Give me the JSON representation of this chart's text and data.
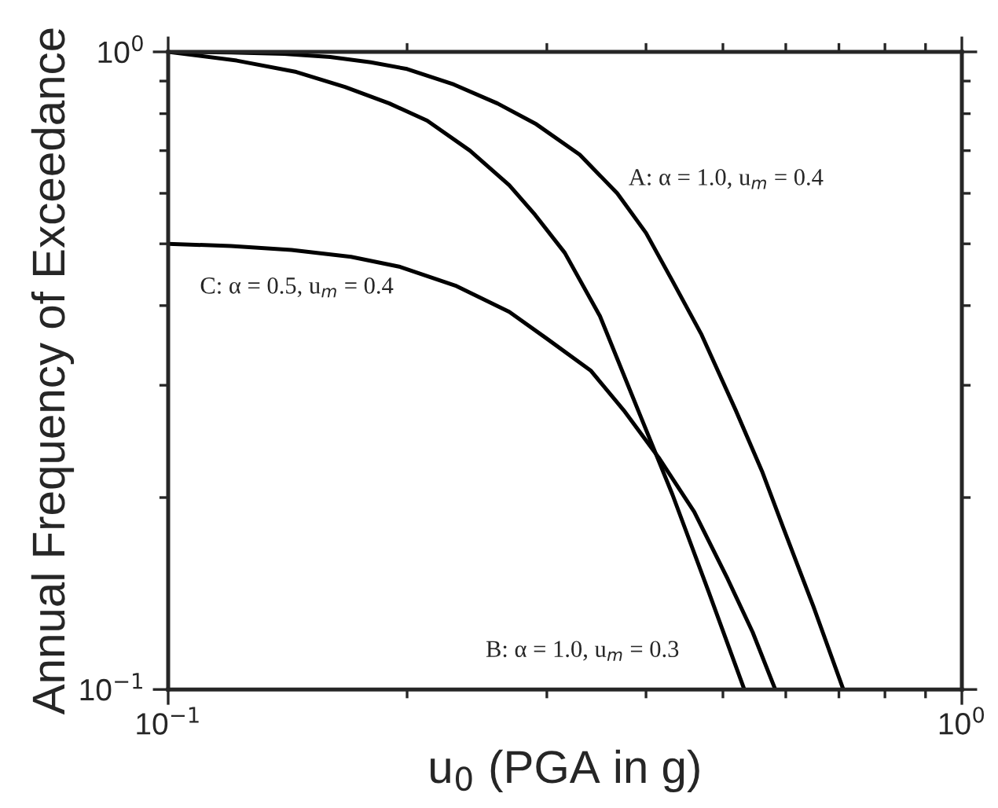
{
  "chart_data": {
    "type": "line",
    "xlabel": "u$_{0}$ (PGA in g)",
    "ylabel": "Annual Frequency of Exceedance",
    "log": "xy",
    "legend": false,
    "marker": "none",
    "line_style": "solid",
    "xlim": [
      0.1,
      1
    ],
    "ylim": [
      0.1,
      1
    ],
    "xticks": [
      {
        "value": 0.1,
        "label": "10$^{−1}$"
      },
      {
        "value": 1,
        "label": "10$^{0}$"
      }
    ],
    "yticks": [
      {
        "value": 0.1,
        "label": "10$^{−1}$"
      },
      {
        "value": 1,
        "label": "10$^{0}$"
      }
    ],
    "series": [
      {
        "color": "#000000",
        "x": [
          0.1,
          0.12,
          0.14,
          0.16,
          0.18,
          0.2,
          0.229,
          0.26,
          0.291,
          0.33,
          0.368,
          0.4,
          0.432,
          0.47,
          0.519,
          0.56,
          0.595,
          0.65,
          0.709
        ],
        "values": [
          1.0,
          0.998,
          0.993,
          0.982,
          0.963,
          0.94,
          0.889,
          0.83,
          0.77,
          0.69,
          0.6,
          0.52,
          0.437,
          0.36,
          0.274,
          0.22,
          0.18,
          0.135,
          0.1
        ]
      },
      {
        "color": "#000000",
        "x": [
          0.1,
          0.122,
          0.145,
          0.167,
          0.19,
          0.212,
          0.24,
          0.269,
          0.29,
          0.316,
          0.35,
          0.391,
          0.432,
          0.48,
          0.532
        ],
        "values": [
          1.0,
          0.969,
          0.93,
          0.881,
          0.83,
          0.78,
          0.7,
          0.618,
          0.555,
          0.484,
          0.385,
          0.274,
          0.202,
          0.142,
          0.1
        ]
      },
      {
        "color": "#000000",
        "x": [
          0.1,
          0.12,
          0.143,
          0.17,
          0.196,
          0.23,
          0.269,
          0.3,
          0.341,
          0.375,
          0.415,
          0.46,
          0.507,
          0.545,
          0.582
        ],
        "values": [
          0.5,
          0.496,
          0.489,
          0.477,
          0.46,
          0.43,
          0.391,
          0.355,
          0.316,
          0.274,
          0.231,
          0.19,
          0.149,
          0.123,
          0.1
        ]
      }
    ],
    "annotations": [
      "A: α = 1.0, u$_{m}$ = 0.4",
      "B: α = 1.0, u$_{m}$ = 0.3",
      "C: α = 0.5, u$_{m}$ = 0.4"
    ]
  }
}
